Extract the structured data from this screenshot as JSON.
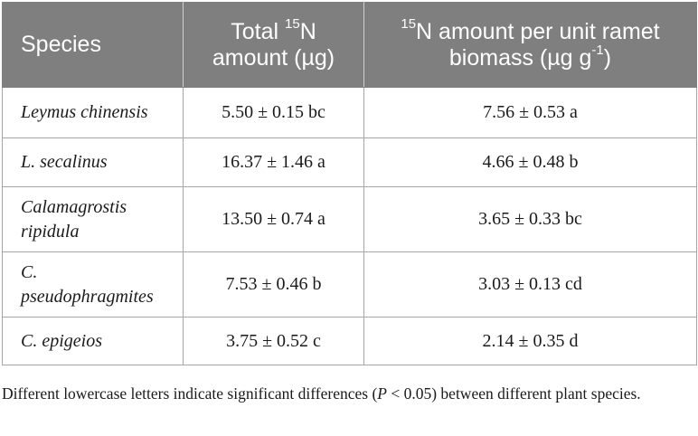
{
  "table": {
    "headers": {
      "species": "Species",
      "total_pre": "Total ",
      "total_sup": "15",
      "total_post": "N amount (µg)",
      "perunit_sup": "15",
      "perunit_main": "N amount per unit ramet biomass (µg g",
      "perunit_sup2": "-1",
      "perunit_end": ")"
    },
    "rows": [
      {
        "species": "Leymus chinensis",
        "total": "5.50 ± 0.15 bc",
        "per_unit": "7.56 ± 0.53 a"
      },
      {
        "species": "L. secalinus",
        "total": "16.37 ± 1.46 a",
        "per_unit": "4.66 ± 0.48 b"
      },
      {
        "species": "Calamagrostis ripidula",
        "total": "13.50 ± 0.74 a",
        "per_unit": "3.65 ± 0.33 bc"
      },
      {
        "species": "C. pseudophragmites",
        "total": "7.53 ± 0.46 b",
        "per_unit": "3.03 ± 0.13 cd"
      },
      {
        "species": "C. epigeios",
        "total": "3.75 ± 0.52 c",
        "per_unit": "2.14 ± 0.35 d"
      }
    ]
  },
  "footnote": {
    "before": "Different lowercase letters indicate significant differences (",
    "p": "P",
    "after": " < 0.05) between different plant species."
  }
}
